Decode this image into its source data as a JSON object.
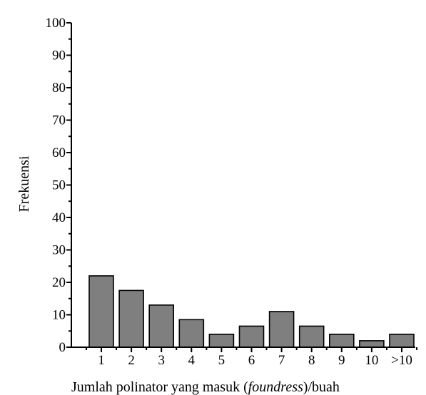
{
  "chart_data": {
    "type": "bar",
    "categories": [
      "1",
      "2",
      "3",
      "4",
      "5",
      "6",
      "7",
      "8",
      "9",
      "10",
      ">10"
    ],
    "values": [
      22,
      17.5,
      13,
      8.5,
      4,
      6.5,
      11,
      6.5,
      4,
      2,
      4
    ],
    "xlabel": {
      "prefix": "Jumlah polinator yang masuk (",
      "italic": "foundress",
      "suffix": ")/buah"
    },
    "ylabel": "Frekuensi",
    "ylim": [
      0,
      100
    ],
    "yticks": [
      "0",
      "10",
      "20",
      "30",
      "40",
      "50",
      "60",
      "70",
      "80",
      "90",
      "100"
    ],
    "grid": false,
    "bar_color": "#7f7f7f",
    "edge_color": "#000000"
  }
}
